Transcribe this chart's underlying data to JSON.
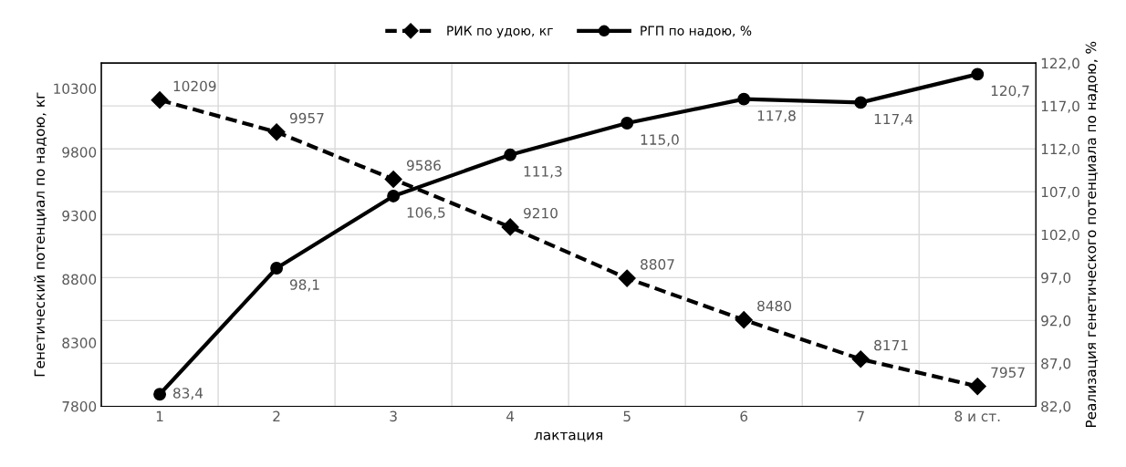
{
  "chart_data": {
    "type": "line",
    "xlabel": "лактация",
    "ylabel": "Генетический потенциал по надою, кг",
    "y2label": "Реализация генетического потенциала по надою, %",
    "categories": [
      "1",
      "2",
      "3",
      "4",
      "5",
      "6",
      "7",
      "8 и ст."
    ],
    "series": [
      {
        "name": "РИК по удою, кг",
        "color": "#000000",
        "line_style": "dashed",
        "marker": "diamond",
        "values": [
          10209,
          9957,
          9586,
          9210,
          8807,
          8480,
          8171,
          7957
        ],
        "value_labels": [
          "10209",
          "9957",
          "9586",
          "9210",
          "8807",
          "8480",
          "8171",
          "7957"
        ]
      },
      {
        "name": "РГП по надою, %",
        "color": "#000000",
        "line_style": "solid",
        "marker": "circle",
        "axis": "y2",
        "values": [
          83.4,
          98.1,
          106.5,
          111.3,
          115.0,
          117.8,
          117.4,
          120.7
        ],
        "value_labels": [
          "83,4",
          "98,1",
          "106,5",
          "111,3",
          "115,0",
          "117,8",
          "117,4",
          "120,7"
        ]
      }
    ],
    "ylim": [
      7800,
      10500
    ],
    "yticks": [
      7800,
      8300,
      8800,
      9300,
      9800,
      10300
    ],
    "y2lim": [
      82,
      122
    ],
    "y2ticks": [
      {
        "value": 82,
        "label": "82,0"
      },
      {
        "value": 87,
        "label": "87,0"
      },
      {
        "value": 92,
        "label": "92,0"
      },
      {
        "value": 97,
        "label": "97,0"
      },
      {
        "value": 102,
        "label": "102,0"
      },
      {
        "value": 107,
        "label": "107,0"
      },
      {
        "value": 112,
        "label": "112,0"
      },
      {
        "value": 117,
        "label": "117,0"
      },
      {
        "value": 122,
        "label": "122,0"
      }
    ],
    "grid": true,
    "legend": "top"
  }
}
